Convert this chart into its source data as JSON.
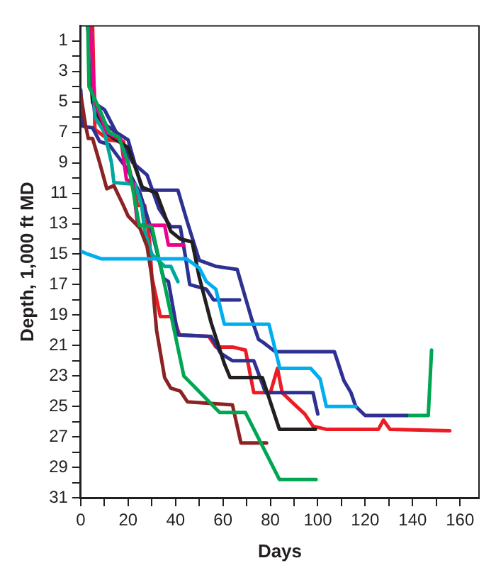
{
  "chart_data": {
    "type": "line",
    "xlabel": "Days",
    "ylabel": "Depth, 1,000 ft MD",
    "xlim": [
      0,
      168
    ],
    "ylim": [
      31,
      0
    ],
    "xticks": [
      0,
      {
        "value": 10,
        "label": null
      },
      20,
      {
        "value": 30,
        "label": null
      },
      40,
      {
        "value": 50,
        "label": null
      },
      60,
      {
        "value": 70,
        "label": null
      },
      80,
      {
        "value": 90,
        "label": null
      },
      100,
      {
        "value": 110,
        "label": null
      },
      120,
      {
        "value": 130,
        "label": null
      },
      140,
      {
        "value": 150,
        "label": null
      },
      160
    ],
    "yticks": [
      1,
      {
        "value": 2,
        "label": null
      },
      3,
      {
        "value": 4,
        "label": null
      },
      5,
      {
        "value": 6,
        "label": null
      },
      7,
      {
        "value": 8,
        "label": null
      },
      9,
      {
        "value": 10,
        "label": null
      },
      11,
      {
        "value": 12,
        "label": null
      },
      13,
      {
        "value": 14,
        "label": null
      },
      15,
      {
        "value": 16,
        "label": null
      },
      17,
      {
        "value": 18,
        "label": null
      },
      19,
      {
        "value": 20,
        "label": null
      },
      21,
      {
        "value": 22,
        "label": null
      },
      23,
      {
        "value": 24,
        "label": null
      },
      25,
      {
        "value": 26,
        "label": null
      },
      27,
      {
        "value": 28,
        "label": null
      },
      29,
      {
        "value": 30,
        "label": null
      },
      31
    ],
    "grid": false,
    "legend": false,
    "marker": "none",
    "line_style": "solid",
    "series": [
      {
        "color": "#00aeef",
        "x": [
          0,
          3,
          8.6,
          44.5,
          50,
          53,
          57,
          60.6,
          79.4,
          84,
          97,
          101,
          103.6,
          116
        ],
        "values": [
          14.8,
          15,
          15.3,
          15.3,
          15.9,
          16.8,
          17.3,
          19.6,
          19.6,
          22.5,
          22.5,
          23.2,
          25,
          25
        ]
      },
      {
        "color": "#00a651",
        "x": [
          3,
          3.5,
          8,
          12,
          16,
          20,
          24.7,
          30,
          35.4,
          43.5,
          58.6,
          69.5,
          83.8,
          99.3
        ],
        "values": [
          0,
          4,
          5.5,
          7,
          7.3,
          9,
          13.1,
          13.2,
          17,
          23,
          25.4,
          25.4,
          29.8,
          29.8
        ]
      },
      {
        "color": "#8b2323",
        "x": [
          0,
          2,
          3.2,
          5,
          8,
          11,
          14,
          18,
          20,
          25,
          28,
          30,
          32,
          35.4,
          38,
          42,
          45,
          64,
          67.6,
          78.4
        ],
        "values": [
          4.5,
          6.5,
          7.4,
          7.4,
          9,
          10.7,
          10.5,
          11.8,
          12.5,
          13.3,
          14.5,
          16.5,
          20,
          23.1,
          23.8,
          24,
          24.7,
          24.9,
          27.4,
          27.4
        ]
      },
      {
        "color": "#ec008c",
        "x": [
          4,
          6,
          11,
          17,
          19.3,
          22,
          24,
          35.4,
          37,
          43.5
        ],
        "values": [
          0,
          5,
          7,
          7.5,
          10.1,
          10.3,
          13.1,
          13.1,
          14.4,
          14.4
        ]
      },
      {
        "color": "#00a79d",
        "x": [
          4,
          6,
          10,
          13,
          14,
          23,
          25.7,
          27,
          30,
          35.4,
          38,
          41
        ],
        "values": [
          0,
          6,
          7,
          9,
          10.3,
          10.4,
          11.8,
          13.5,
          15,
          15.8,
          15.8,
          16.8
        ]
      },
      {
        "color": "#231f20",
        "x": [
          3,
          5,
          10,
          20,
          26,
          32,
          38,
          42,
          47,
          50,
          55,
          60.6,
          63,
          76.6,
          83.8,
          99
        ],
        "values": [
          0,
          5,
          7,
          8,
          10.6,
          11,
          13.5,
          14,
          14.2,
          16.5,
          19.5,
          22.2,
          23.1,
          23.1,
          26.5,
          26.5
        ]
      },
      {
        "color": "#2e3192",
        "x": [
          3,
          6,
          15,
          22,
          28,
          33,
          38,
          42,
          44,
          46,
          53,
          56,
          67
        ],
        "values": [
          0,
          6,
          7,
          9,
          9.8,
          12,
          13.2,
          13.2,
          15,
          17,
          17.3,
          18,
          18
        ]
      },
      {
        "color": "#2e3192",
        "x": [
          0,
          1,
          5,
          8,
          12,
          20,
          25,
          30,
          35,
          37,
          41,
          55,
          59,
          64,
          73,
          78,
          98,
          100
        ],
        "values": [
          4.2,
          6.6,
          6.7,
          7.6,
          7.8,
          9.5,
          11,
          13.5,
          16.6,
          16.8,
          20.3,
          20.4,
          21.5,
          22,
          22,
          24.1,
          24.1,
          25.5
        ]
      },
      {
        "color": "#ed1c24",
        "x": [
          5,
          6,
          12,
          18,
          20,
          24,
          27,
          29,
          30,
          33.6,
          39,
          41.7,
          54,
          57,
          64,
          69.5,
          73,
          80,
          83,
          85,
          89,
          94.5,
          98,
          103.5,
          125.6,
          127.7,
          130.4,
          155.7
        ],
        "values": [
          0,
          6.8,
          7.5,
          7.6,
          9,
          11.8,
          11.8,
          14,
          16.5,
          19.1,
          19.1,
          20.3,
          20.4,
          21.1,
          21.1,
          21.3,
          24.1,
          24.1,
          22.5,
          24.1,
          24.7,
          25.5,
          26.3,
          26.5,
          26.5,
          25.9,
          26.5,
          26.6
        ]
      },
      {
        "color": "#2e3192",
        "x": [
          3,
          5,
          10,
          15,
          20,
          26,
          41,
          45,
          50,
          57,
          66,
          72,
          75,
          77,
          82,
          107,
          111,
          114,
          116,
          120,
          137.5
        ],
        "values": [
          0,
          5,
          5.5,
          7,
          7.5,
          10.8,
          10.8,
          12.9,
          15.4,
          15.8,
          16,
          19.2,
          20.6,
          20.8,
          21.4,
          21.4,
          23.3,
          24.1,
          25,
          25.6,
          25.6
        ]
      },
      {
        "color": "#00a651",
        "x": [
          137.5,
          146.6,
          148
        ],
        "values": [
          25.6,
          25.6,
          21.3
        ]
      }
    ]
  }
}
